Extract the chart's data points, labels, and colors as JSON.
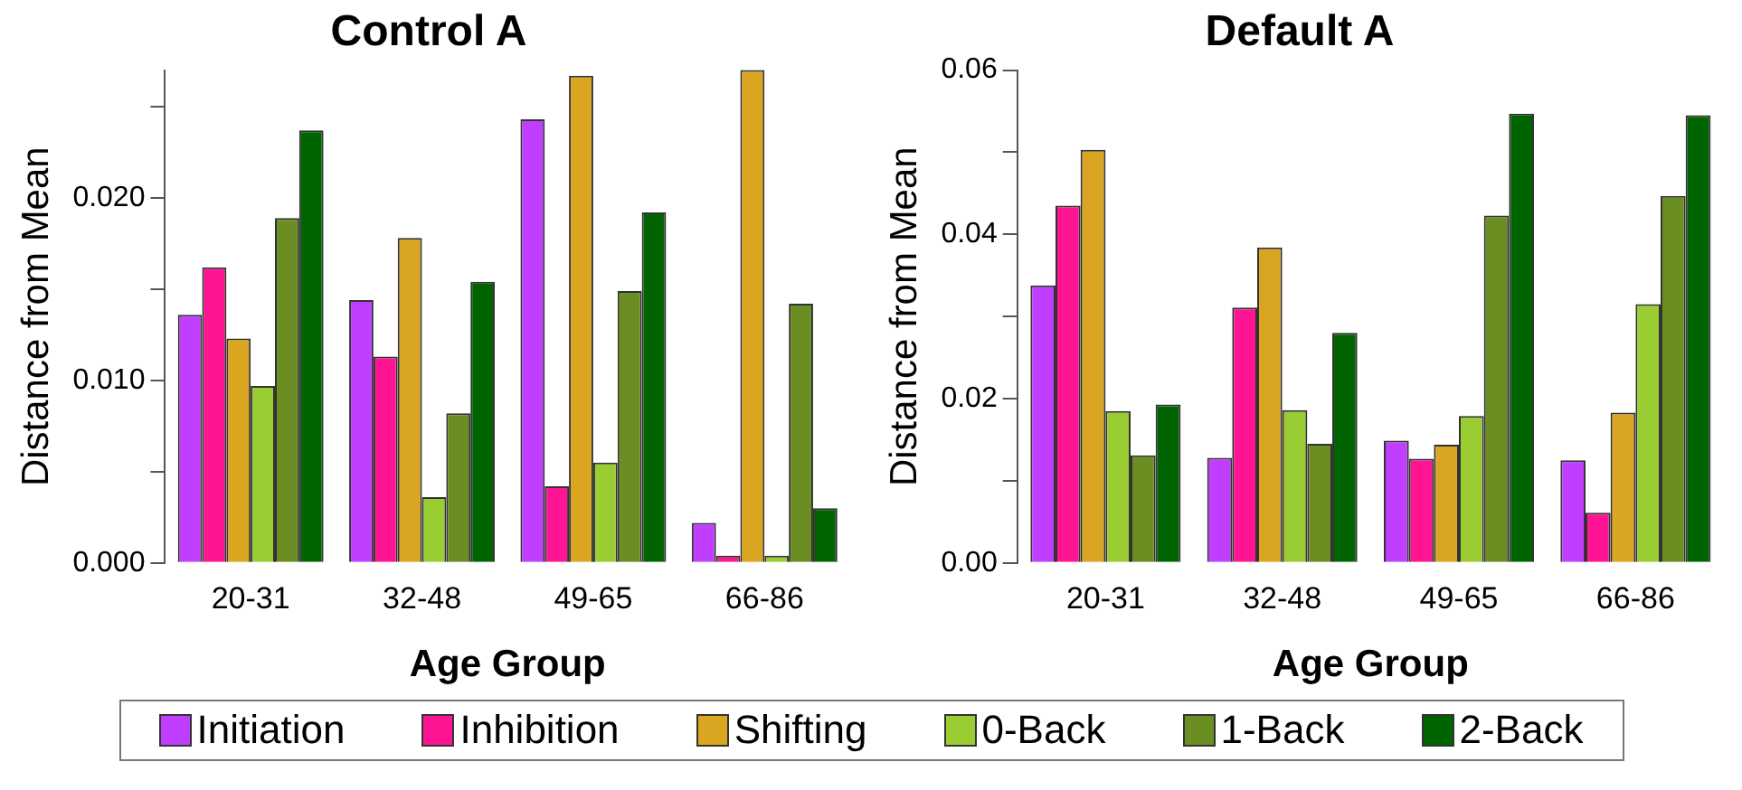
{
  "chart_data": [
    {
      "type": "bar",
      "title": "Control A",
      "xlabel": "Age Group",
      "ylabel": "Distance from Mean",
      "categories": [
        "20-31",
        "32-48",
        "49-65",
        "66-86"
      ],
      "series": [
        {
          "name": "Initiation",
          "color": "#bf3eff",
          "values": [
            0.0136,
            0.0144,
            0.0243,
            0.0022
          ]
        },
        {
          "name": "Inhibition",
          "color": "#ff1493",
          "values": [
            0.0162,
            0.0113,
            0.0042,
            0.0004
          ]
        },
        {
          "name": "Shifting",
          "color": "#daa520",
          "values": [
            0.0123,
            0.0178,
            0.0267,
            0.027
          ]
        },
        {
          "name": "0-Back",
          "color": "#9acd32",
          "values": [
            0.0097,
            0.0036,
            0.0055,
            0.0004
          ]
        },
        {
          "name": "1-Back",
          "color": "#6b8e23",
          "values": [
            0.0189,
            0.0082,
            0.0149,
            0.0142
          ]
        },
        {
          "name": "2-Back",
          "color": "#006400",
          "values": [
            0.0237,
            0.0154,
            0.0192,
            0.003
          ]
        }
      ],
      "ylim": [
        0,
        0.027
      ],
      "yticks": [
        {
          "value": 0,
          "label": "0.000"
        },
        {
          "value": 0.005,
          "label": null
        },
        {
          "value": 0.01,
          "label": "0.010"
        },
        {
          "value": 0.015,
          "label": null
        },
        {
          "value": 0.02,
          "label": "0.020"
        },
        {
          "value": 0.025,
          "label": null
        }
      ],
      "grid": false,
      "legend": "bottom"
    },
    {
      "type": "bar",
      "title": "Default A",
      "xlabel": "Age Group",
      "ylabel": "Distance from Mean",
      "categories": [
        "20-31",
        "32-48",
        "49-65",
        "66-86"
      ],
      "series": [
        {
          "name": "Initiation",
          "color": "#bf3eff",
          "values": [
            0.0338,
            0.0128,
            0.0149,
            0.0125
          ]
        },
        {
          "name": "Inhibition",
          "color": "#ff1493",
          "values": [
            0.0435,
            0.0311,
            0.0127,
            0.0061
          ]
        },
        {
          "name": "Shifting",
          "color": "#daa520",
          "values": [
            0.0503,
            0.0384,
            0.0144,
            0.0183
          ]
        },
        {
          "name": "0-Back",
          "color": "#9acd32",
          "values": [
            0.0185,
            0.0186,
            0.0179,
            0.0315
          ]
        },
        {
          "name": "1-Back",
          "color": "#6b8e23",
          "values": [
            0.0131,
            0.0145,
            0.0423,
            0.0447
          ]
        },
        {
          "name": "2-Back",
          "color": "#006400",
          "values": [
            0.0193,
            0.028,
            0.0547,
            0.0545
          ]
        }
      ],
      "ylim": [
        0,
        0.06
      ],
      "yticks": [
        {
          "value": 0,
          "label": "0.00"
        },
        {
          "value": 0.01,
          "label": null
        },
        {
          "value": 0.02,
          "label": "0.02"
        },
        {
          "value": 0.03,
          "label": null
        },
        {
          "value": 0.04,
          "label": "0.04"
        },
        {
          "value": 0.05,
          "label": null
        },
        {
          "value": 0.06,
          "label": "0.06"
        }
      ],
      "grid": false,
      "legend": "bottom"
    }
  ]
}
